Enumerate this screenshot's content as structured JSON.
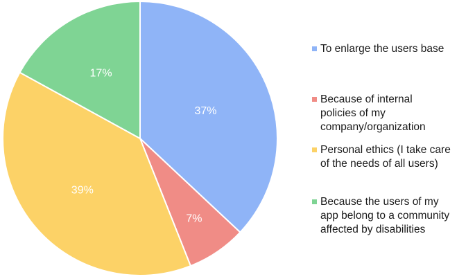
{
  "chart_data": {
    "type": "pie",
    "slices": [
      {
        "label": "To enlarge the users base",
        "value": 37,
        "display": "37%",
        "color": "#8FB4F7"
      },
      {
        "label": "Because of internal\npolicies of my\ncompany/organization",
        "value": 7,
        "display": "7%",
        "color": "#F08C86"
      },
      {
        "label": "Personal ethics (I take care\nof the needs of all users)",
        "value": 39,
        "display": "39%",
        "color": "#FCD267"
      },
      {
        "label": "Because the users of my\napp belong to a community\naffected by disabilities",
        "value": 17,
        "display": "17%",
        "color": "#7FD494"
      }
    ],
    "legend_position": "right"
  }
}
